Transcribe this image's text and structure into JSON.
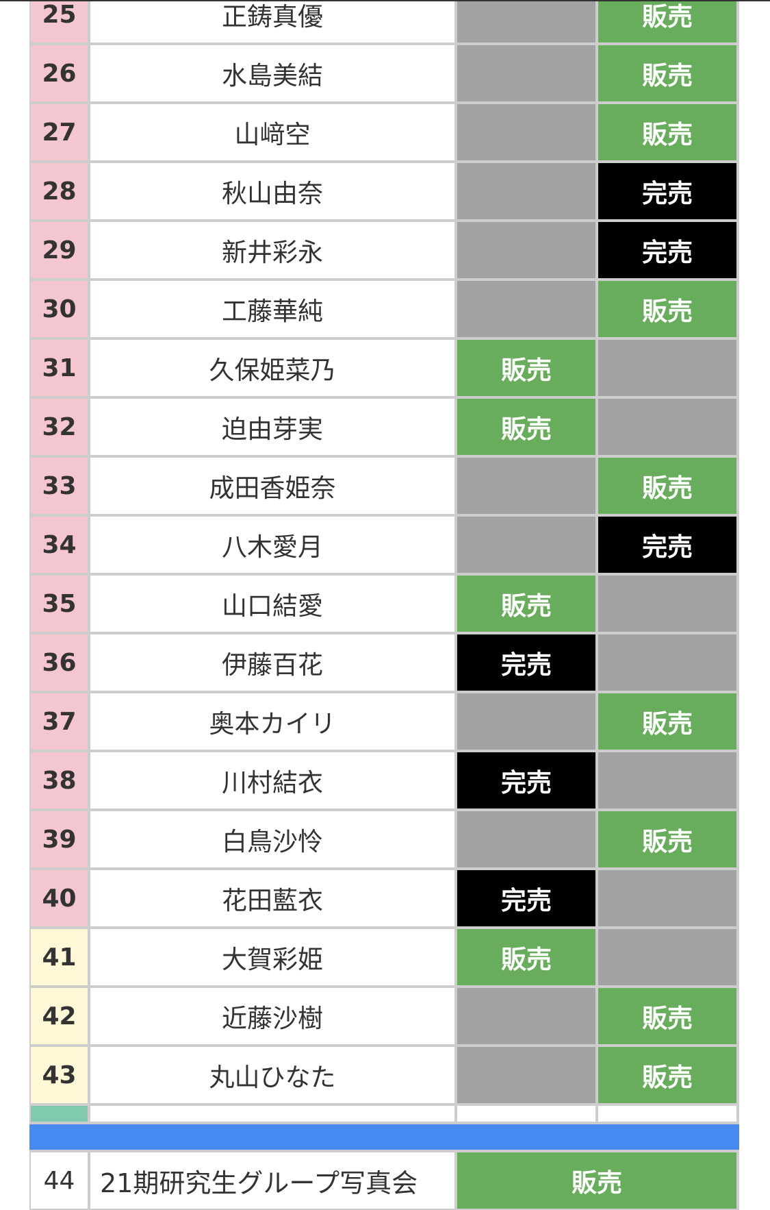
{
  "labels": {
    "sale": "販売",
    "sold_out": "完売"
  },
  "colors": {
    "sale": "#68ad5c",
    "sold_out": "#000000",
    "unavailable": "#a2a2a2",
    "pink": "#f4c6cf",
    "yellow": "#fff8d6",
    "green_marker": "#80cbad",
    "separator": "#478bf2"
  },
  "rows": [
    {
      "no": "25",
      "name": "正鋳真優",
      "col1": "",
      "col2": "販売",
      "tone": "pink"
    },
    {
      "no": "26",
      "name": "水島美結",
      "col1": "",
      "col2": "販売",
      "tone": "pink"
    },
    {
      "no": "27",
      "name": "山﨑空",
      "col1": "",
      "col2": "販売",
      "tone": "pink"
    },
    {
      "no": "28",
      "name": "秋山由奈",
      "col1": "",
      "col2": "完売",
      "tone": "pink"
    },
    {
      "no": "29",
      "name": "新井彩永",
      "col1": "",
      "col2": "完売",
      "tone": "pink"
    },
    {
      "no": "30",
      "name": "工藤華純",
      "col1": "",
      "col2": "販売",
      "tone": "pink"
    },
    {
      "no": "31",
      "name": "久保姫菜乃",
      "col1": "販売",
      "col2": "",
      "tone": "pink"
    },
    {
      "no": "32",
      "name": "迫由芽実",
      "col1": "販売",
      "col2": "",
      "tone": "pink"
    },
    {
      "no": "33",
      "name": "成田香姫奈",
      "col1": "",
      "col2": "販売",
      "tone": "pink"
    },
    {
      "no": "34",
      "name": "八木愛月",
      "col1": "",
      "col2": "完売",
      "tone": "pink"
    },
    {
      "no": "35",
      "name": "山口結愛",
      "col1": "販売",
      "col2": "",
      "tone": "pink"
    },
    {
      "no": "36",
      "name": "伊藤百花",
      "col1": "完売",
      "col2": "",
      "tone": "pink"
    },
    {
      "no": "37",
      "name": "奥本カイリ",
      "col1": "",
      "col2": "販売",
      "tone": "pink"
    },
    {
      "no": "38",
      "name": "川村結衣",
      "col1": "完売",
      "col2": "",
      "tone": "pink"
    },
    {
      "no": "39",
      "name": "白鳥沙怜",
      "col1": "",
      "col2": "販売",
      "tone": "pink"
    },
    {
      "no": "40",
      "name": "花田藍衣",
      "col1": "完売",
      "col2": "",
      "tone": "pink"
    },
    {
      "no": "41",
      "name": "大賀彩姫",
      "col1": "販売",
      "col2": "",
      "tone": "yellow"
    },
    {
      "no": "42",
      "name": "近藤沙樹",
      "col1": "",
      "col2": "販売",
      "tone": "yellow"
    },
    {
      "no": "43",
      "name": "丸山ひなた",
      "col1": "",
      "col2": "販売",
      "tone": "yellow"
    }
  ],
  "group": {
    "no": "44",
    "name": "21期研究生グループ写真会",
    "status": "販売"
  }
}
